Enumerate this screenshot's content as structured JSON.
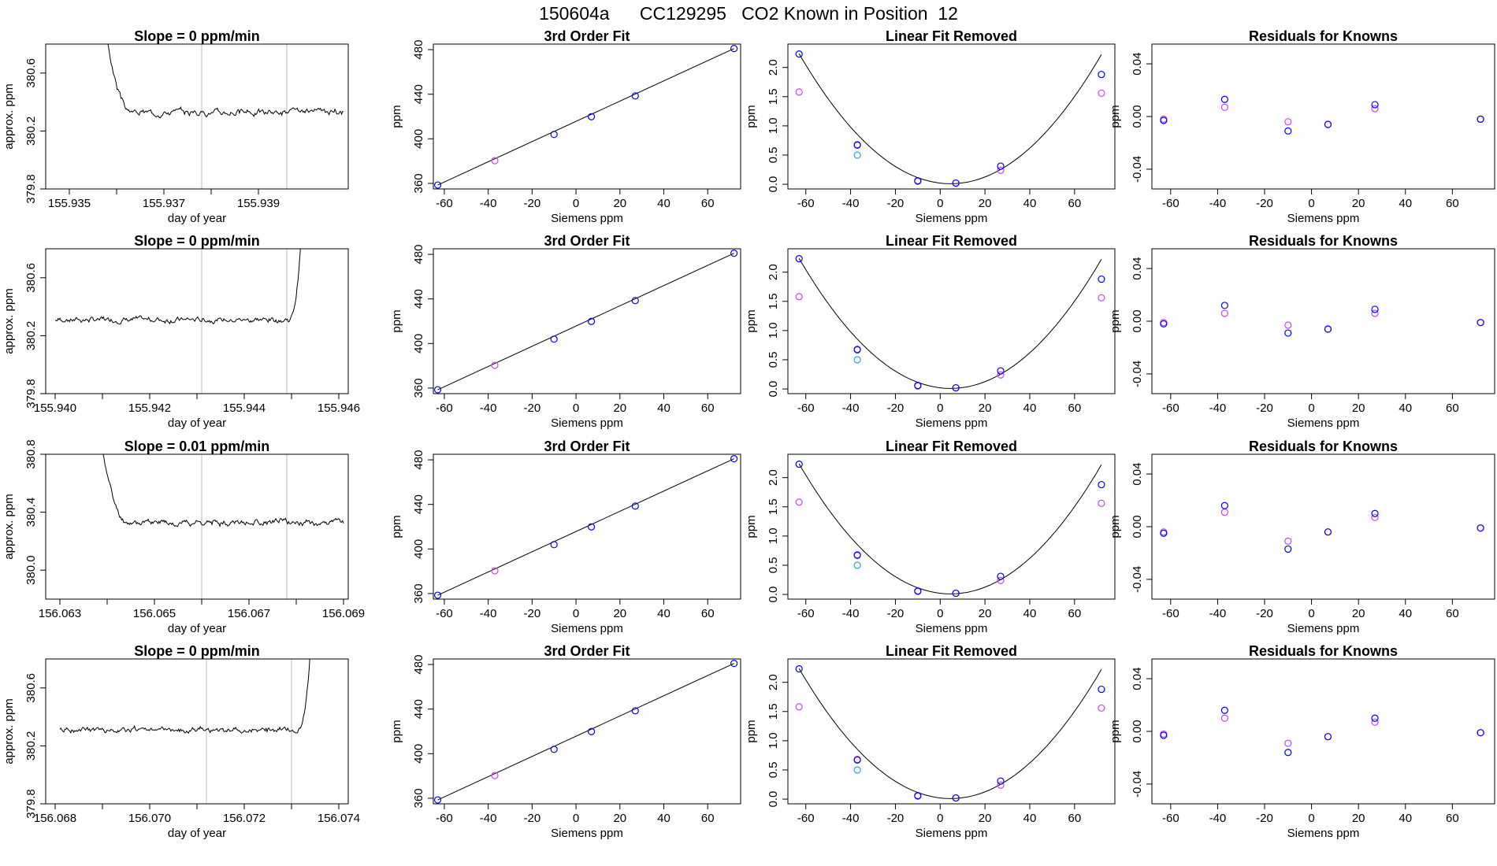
{
  "page": {
    "title": "150604a      CC129295   CO2 Known in Position  12"
  },
  "colors": {
    "line": "#000000",
    "grid": "#bebebe",
    "blue": "#0000ff",
    "magenta": "#cc44ee",
    "cyan": "#22aadd",
    "red": "#ff0000"
  },
  "rows": [
    {
      "time": {
        "title": "Slope =  0  ppm/min",
        "xlabel": "day of year",
        "ylabel": "approx. ppm",
        "xlim": [
          155.9345,
          155.9409
        ],
        "ylim": [
          379.8,
          380.8
        ],
        "xticks": [
          "155.935",
          "155.937",
          "155.939"
        ],
        "xtickvals": [
          155.935,
          155.937,
          155.939
        ],
        "minorticks": [
          155.936,
          155.938
        ],
        "yticks": [
          "379.8",
          "380.2",
          "380.6"
        ],
        "ytickvals": [
          379.8,
          380.2,
          380.6
        ],
        "vlines": [
          155.9378,
          155.9396
        ],
        "trace": {
          "start": 155.9355,
          "end": 155.9408,
          "mode": "spike_start",
          "level": 380.33,
          "amp": 0.018,
          "seed": 3
        }
      },
      "fit": {
        "title": "3rd Order Fit",
        "xlabel": "Siemens ppm",
        "ylabel": "ppm"
      },
      "lin": {
        "title": "Linear Fit Removed",
        "xlabel": "Siemens ppm",
        "ylabel": "ppm"
      },
      "res": {
        "title": "Residuals for Knowns",
        "xlabel": "Siemens ppm",
        "ylabel": "ppm",
        "blue": [
          -0.003,
          0.013,
          -0.011,
          -0.006,
          0.009,
          -0.002
        ],
        "magenta": [
          -0.002,
          0.007,
          -0.004,
          -0.006,
          0.006,
          -0.002
        ]
      }
    },
    {
      "time": {
        "title": "Slope =  0  ppm/min",
        "xlabel": "day of year",
        "ylabel": "approx. ppm",
        "xlim": [
          155.9398,
          155.9462
        ],
        "ylim": [
          379.8,
          380.8
        ],
        "xticks": [
          "155.940",
          "155.942",
          "155.944",
          "155.946"
        ],
        "xtickvals": [
          155.94,
          155.942,
          155.944,
          155.946
        ],
        "minorticks": [
          155.941,
          155.943,
          155.945
        ],
        "yticks": [
          "379.8",
          "380.2",
          "380.6"
        ],
        "ytickvals": [
          379.8,
          380.2,
          380.6
        ],
        "vlines": [
          155.9431,
          155.9449
        ],
        "trace": {
          "start": 155.94,
          "end": 155.9453,
          "mode": "spike_end",
          "level": 380.31,
          "amp": 0.016,
          "seed": 7
        }
      },
      "fit": {
        "title": "3rd Order Fit",
        "xlabel": "Siemens ppm",
        "ylabel": "ppm"
      },
      "lin": {
        "title": "Linear Fit Removed",
        "xlabel": "Siemens ppm",
        "ylabel": "ppm"
      },
      "res": {
        "title": "Residuals for Knowns",
        "xlabel": "Siemens ppm",
        "ylabel": "ppm",
        "blue": [
          -0.002,
          0.012,
          -0.009,
          -0.006,
          0.009,
          -0.001
        ],
        "magenta": [
          -0.001,
          0.006,
          -0.003,
          -0.006,
          0.006,
          -0.001
        ]
      }
    },
    {
      "time": {
        "title": "Slope =  0.01  ppm/min",
        "xlabel": "day of year",
        "ylabel": "approx. ppm",
        "xlim": [
          156.0627,
          156.0691
        ],
        "ylim": [
          379.8,
          380.8
        ],
        "xticks": [
          "156.063",
          "156.065",
          "156.067",
          "156.069"
        ],
        "xtickvals": [
          156.063,
          156.065,
          156.067,
          156.069
        ],
        "minorticks": [
          156.064,
          156.066,
          156.068
        ],
        "yticks": [
          "380.0",
          "380.4",
          "380.8"
        ],
        "ytickvals": [
          380.0,
          380.4,
          380.8
        ],
        "vlines": [
          156.066,
          156.0678
        ],
        "trace": {
          "start": 156.0636,
          "end": 156.069,
          "mode": "spike_start",
          "level": 380.33,
          "amp": 0.018,
          "seed": 11
        }
      },
      "fit": {
        "title": "3rd Order Fit",
        "xlabel": "Siemens ppm",
        "ylabel": "ppm"
      },
      "lin": {
        "title": "Linear Fit Removed",
        "xlabel": "Siemens ppm",
        "ylabel": "ppm"
      },
      "res": {
        "title": "Residuals for Knowns",
        "xlabel": "Siemens ppm",
        "ylabel": "ppm",
        "blue": [
          -0.005,
          0.016,
          -0.017,
          -0.004,
          0.01,
          -0.001
        ],
        "magenta": [
          -0.004,
          0.011,
          -0.011,
          -0.004,
          0.007,
          -0.001
        ]
      }
    },
    {
      "time": {
        "title": "Slope =  0  ppm/min",
        "xlabel": "day of year",
        "ylabel": "approx. ppm",
        "xlim": [
          156.0678,
          156.0742
        ],
        "ylim": [
          379.8,
          380.8
        ],
        "xticks": [
          "156.068",
          "156.070",
          "156.072",
          "156.074"
        ],
        "xtickvals": [
          156.068,
          156.07,
          156.072,
          156.074
        ],
        "minorticks": [
          156.069,
          156.071,
          156.073
        ],
        "yticks": [
          "379.8",
          "380.2",
          "380.6"
        ],
        "ytickvals": [
          379.8,
          380.2,
          380.6
        ],
        "vlines": [
          156.0712,
          156.073
        ],
        "trace": {
          "start": 156.0681,
          "end": 156.0735,
          "mode": "spike_end",
          "level": 380.31,
          "amp": 0.016,
          "seed": 19
        }
      },
      "fit": {
        "title": "3rd Order Fit",
        "xlabel": "Siemens ppm",
        "ylabel": "ppm"
      },
      "lin": {
        "title": "Linear Fit Removed",
        "xlabel": "Siemens ppm",
        "ylabel": "ppm"
      },
      "res": {
        "title": "Residuals for Knowns",
        "xlabel": "Siemens ppm",
        "ylabel": "ppm",
        "blue": [
          -0.003,
          0.016,
          -0.016,
          -0.004,
          0.01,
          -0.001
        ],
        "magenta": [
          -0.002,
          0.01,
          -0.009,
          -0.004,
          0.007,
          -0.001
        ]
      }
    }
  ],
  "chart_data": [
    {
      "type": "line",
      "title": "Slope =  0  ppm/min",
      "xlabel": "day of year",
      "ylabel": "approx. ppm"
    },
    {
      "type": "scatter",
      "title": "3rd Order Fit",
      "xlabel": "Siemens ppm",
      "ylabel": "ppm",
      "xlim": [
        -65,
        75
      ],
      "ylim": [
        355,
        485
      ],
      "xticks": [
        -60,
        -40,
        -20,
        0,
        20,
        40,
        60
      ],
      "yticks": [
        360,
        400,
        440,
        480
      ],
      "x": [
        -63,
        -37,
        -10,
        7,
        27,
        72
      ],
      "y": [
        358.5,
        380.4,
        403.9,
        419.8,
        438.5,
        481.0
      ]
    },
    {
      "type": "scatter",
      "title": "Linear Fit Removed",
      "xlabel": "Siemens ppm",
      "ylabel": "ppm",
      "xlim": [
        -68,
        78
      ],
      "ylim": [
        -0.08,
        2.4
      ],
      "xticks": [
        -60,
        -40,
        -20,
        0,
        20,
        40,
        60
      ],
      "yticks": [
        0.0,
        0.5,
        1.0,
        1.5,
        2.0
      ],
      "x": [
        -63,
        -37,
        -10,
        7,
        27,
        72
      ],
      "series_blue": [
        2.23,
        0.67,
        0.06,
        0.02,
        0.31,
        1.88
      ],
      "series_magenta": [
        1.58,
        0.68,
        0.05,
        0.02,
        0.24,
        1.56
      ],
      "series_cyan": [
        null,
        0.5,
        null,
        null,
        null,
        null
      ]
    },
    {
      "type": "scatter",
      "title": "Residuals for Knowns",
      "xlabel": "Siemens ppm",
      "ylabel": "ppm",
      "xlim": [
        -68,
        78
      ],
      "ylim": [
        -0.055,
        0.055
      ],
      "xticks": [
        -60,
        -40,
        -20,
        0,
        20,
        40,
        60
      ],
      "yticks": [
        "-0.04",
        "0.00",
        "0.04"
      ],
      "x": [
        -63,
        -37,
        -10,
        7,
        27,
        72
      ]
    }
  ]
}
